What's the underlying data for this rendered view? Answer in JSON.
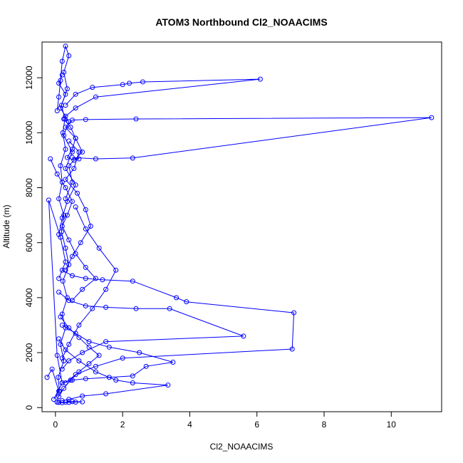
{
  "chart_data": {
    "type": "line",
    "title": "ATOM3 Northbound Cl2_NOAACIMS",
    "xlabel": "Cl2_NOAACIMS",
    "ylabel": "Altitude (m)",
    "xlim": [
      -0.4,
      11.5
    ],
    "ylim": [
      -150,
      13300
    ],
    "x_ticks": [
      0,
      2,
      4,
      6,
      8,
      10
    ],
    "y_ticks": [
      0,
      2000,
      4000,
      6000,
      8000,
      10000,
      12000
    ],
    "grid": false,
    "legend": "none",
    "color": "#0000ff",
    "marker": "open-circle",
    "series": [
      {
        "x": [
          0.05,
          0.12,
          0.08,
          0.25,
          0.15,
          0.3,
          0.2,
          0.35,
          0.22,
          0.4,
          0.3,
          0.18,
          0.25,
          0.1,
          0.2,
          0.15,
          0.3,
          0.22,
          0.28,
          0.18,
          0.35,
          0.25,
          0.4,
          0.3,
          0.2,
          0.15,
          0.1,
          0.05
        ],
        "y": [
          200,
          600,
          1100,
          1700,
          2300,
          2900,
          3400,
          4000,
          4600,
          5200,
          5800,
          6400,
          7000,
          7600,
          8200,
          8800,
          9400,
          10000,
          10500,
          11000,
          11600,
          12200,
          12800,
          13150,
          12600,
          11900,
          11300,
          10800
        ]
      },
      {
        "x": [
          0.25,
          0.45,
          0.6,
          0.5,
          0.35,
          0.55,
          0.7,
          0.5,
          1.2,
          2.3,
          11.2,
          2.4,
          0.9,
          0.5,
          0.3,
          0.6,
          0.8,
          0.4,
          0.5,
          0.3
        ],
        "y": [
          10500,
          10200,
          9800,
          9400,
          9100,
          9000,
          9050,
          9100,
          9050,
          9080,
          10550,
          10500,
          10480,
          10460,
          10200,
          9800,
          9300,
          8800,
          8200,
          7600
        ]
      },
      {
        "x": [
          0.3,
          0.6,
          1.1,
          2.0,
          2.2,
          2.6,
          6.1,
          1.2,
          0.6,
          0.3
        ],
        "y": [
          11000,
          11400,
          11650,
          11750,
          11800,
          11850,
          11950,
          11300,
          10900,
          10600
        ]
      },
      {
        "x": [
          0.2,
          0.5,
          0.9,
          1.4,
          2.3,
          3.6,
          3.9,
          7.1,
          7.05,
          2.0,
          1.2,
          0.6,
          0.3
        ],
        "y": [
          5000,
          4800,
          4700,
          4650,
          4600,
          4000,
          3850,
          3450,
          2130,
          1800,
          1500,
          1200,
          900
        ]
      },
      {
        "x": [
          0.1,
          0.4,
          0.9,
          1.5,
          2.4,
          3.4,
          5.6,
          1.5,
          0.8,
          0.4,
          0.2
        ],
        "y": [
          4200,
          3900,
          3700,
          3650,
          3600,
          3600,
          2600,
          2400,
          2000,
          1700,
          1400
        ]
      },
      {
        "x": [
          0.2,
          0.6,
          1.0,
          1.6,
          2.5,
          3.5,
          2.7,
          2.3,
          1.6,
          0.9,
          0.5,
          0.2
        ],
        "y": [
          3000,
          2700,
          2400,
          2200,
          2000,
          1650,
          1500,
          1150,
          1100,
          1050,
          1000,
          900
        ]
      },
      {
        "x": [
          0.1,
          0.3,
          0.7,
          1.2,
          1.8,
          2.3,
          3.35,
          1.5,
          0.8,
          0.4,
          0.2
        ],
        "y": [
          2500,
          2100,
          1700,
          1300,
          1000,
          900,
          820,
          500,
          420,
          300,
          250
        ]
      },
      {
        "x": [
          0.6,
          0.9,
          1.3,
          1.8,
          1.5,
          1.1,
          0.7,
          0.4,
          0.2
        ],
        "y": [
          7300,
          6500,
          5800,
          5000,
          4300,
          3600,
          3000,
          2300,
          1800
        ]
      },
      {
        "x": [
          0.05,
          0.2,
          0.4,
          0.6,
          0.8,
          0.5,
          0.3,
          0.1
        ],
        "y": [
          200,
          180,
          190,
          200,
          210,
          220,
          200,
          190
        ]
      },
      {
        "x": [
          -0.25,
          -0.1,
          0.1,
          -0.05,
          0.2,
          0.05,
          -0.2,
          0.15,
          0.3,
          0.1
        ],
        "y": [
          1100,
          1400,
          600,
          300,
          900,
          1900,
          7550,
          6200,
          5300,
          4700
        ]
      },
      {
        "x": [
          -0.15,
          0.05,
          0.3,
          0.5,
          0.35,
          0.2,
          0.4,
          0.6,
          0.9,
          1.2,
          0.8,
          0.5
        ],
        "y": [
          9050,
          8500,
          8000,
          7500,
          7000,
          6600,
          6100,
          5600,
          5100,
          4700,
          4300,
          3900
        ]
      },
      {
        "x": [
          0.15,
          0.4,
          0.7,
          1.0,
          1.3,
          1.0,
          0.7,
          0.45,
          0.25,
          0.1
        ],
        "y": [
          3300,
          2900,
          2550,
          2200,
          1900,
          1600,
          1300,
          1000,
          700,
          400
        ]
      },
      {
        "x": [
          0.4,
          0.7,
          0.55,
          0.3,
          0.65,
          0.9,
          1.05,
          0.75,
          0.5,
          0.3
        ],
        "y": [
          9700,
          9300,
          8700,
          8300,
          7800,
          7200,
          6600,
          6000,
          5500,
          5000
        ]
      },
      {
        "x": [
          0.2,
          0.1,
          0.3,
          0.15,
          0.4,
          0.25,
          0.5,
          0.3,
          0.6,
          0.35,
          0.2,
          0.1
        ],
        "y": [
          12100,
          11800,
          11400,
          10900,
          10400,
          9900,
          9300,
          8700,
          8100,
          7500,
          6900,
          6300
        ]
      }
    ]
  }
}
